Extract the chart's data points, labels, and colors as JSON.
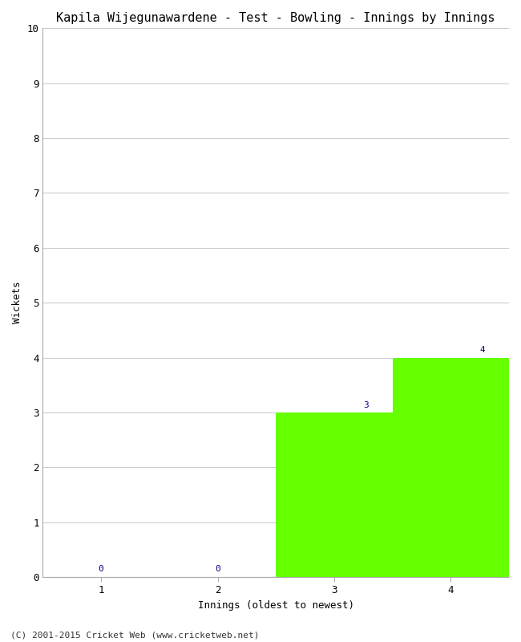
{
  "title": "Kapila Wijegunawardene - Test - Bowling - Innings by Innings",
  "xlabel": "Innings (oldest to newest)",
  "ylabel": "Wickets",
  "categories": [
    1,
    2,
    3,
    4
  ],
  "values": [
    0,
    0,
    3,
    4
  ],
  "bar_color": "#66ff00",
  "annotation_color": "#000080",
  "ylim": [
    0,
    10
  ],
  "yticks": [
    0,
    1,
    2,
    3,
    4,
    5,
    6,
    7,
    8,
    9,
    10
  ],
  "xticks": [
    1,
    2,
    3,
    4
  ],
  "background_color": "#ffffff",
  "footer": "(C) 2001-2015 Cricket Web (www.cricketweb.net)",
  "title_fontsize": 11,
  "axis_label_fontsize": 9,
  "annotation_fontsize": 8,
  "footer_fontsize": 8,
  "tick_fontsize": 9
}
